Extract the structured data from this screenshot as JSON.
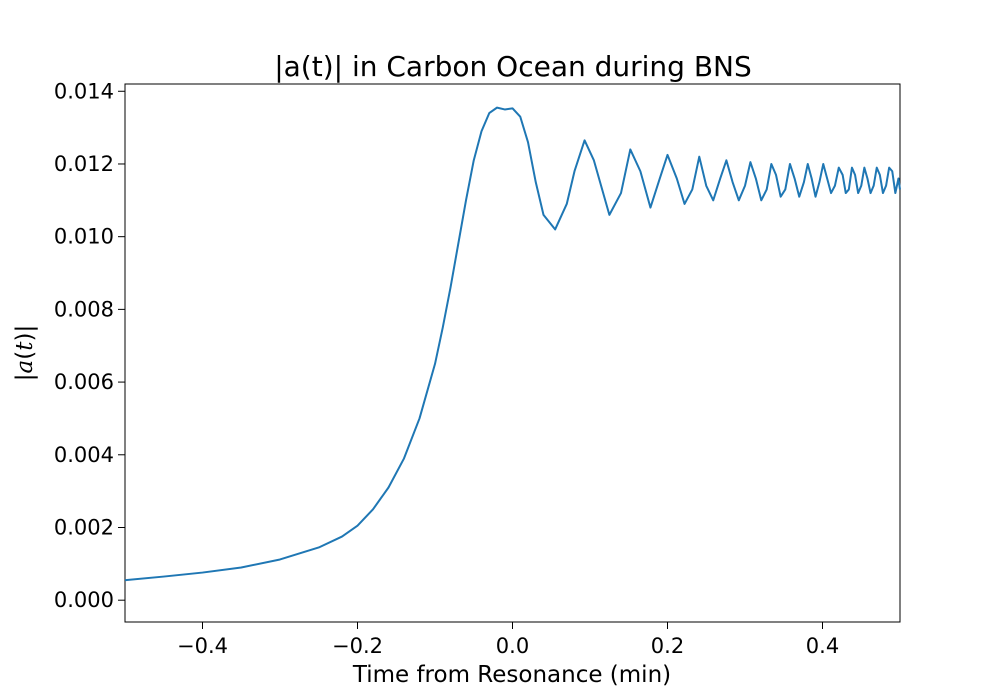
{
  "chart_data": {
    "type": "line",
    "title": "|a(t)| in Carbon Ocean during BNS",
    "xlabel": "Time from Resonance (min)",
    "ylabel_parts": [
      "|",
      "a",
      "(",
      "t",
      ")|"
    ],
    "xlim": [
      -0.5,
      0.5
    ],
    "ylim": [
      -0.0006,
      0.0142
    ],
    "xticks": [
      -0.4,
      -0.2,
      0.0,
      0.2,
      0.4
    ],
    "xtick_labels": [
      "−0.4",
      "−0.2",
      "0.0",
      "0.2",
      "0.4"
    ],
    "yticks": [
      0.0,
      0.002,
      0.004,
      0.006,
      0.008,
      0.01,
      0.012,
      0.014
    ],
    "ytick_labels": [
      "0.000",
      "0.002",
      "0.004",
      "0.006",
      "0.008",
      "0.010",
      "0.012",
      "0.014"
    ],
    "grid": false,
    "line_color": "#1f77b4",
    "series": [
      {
        "x": [
          -0.5,
          -0.45,
          -0.4,
          -0.35,
          -0.3,
          -0.25,
          -0.22,
          -0.2,
          -0.18,
          -0.16,
          -0.14,
          -0.12,
          -0.1,
          -0.09,
          -0.08,
          -0.07,
          -0.06,
          -0.05,
          -0.04,
          -0.03,
          -0.02,
          -0.01,
          0.0,
          0.01,
          0.02,
          0.03,
          0.04,
          0.055,
          0.07,
          0.08,
          0.093,
          0.105,
          0.125,
          0.14,
          0.152,
          0.165,
          0.178,
          0.19,
          0.2,
          0.212,
          0.222,
          0.232,
          0.241,
          0.25,
          0.259,
          0.268,
          0.276,
          0.284,
          0.292,
          0.3,
          0.307,
          0.314,
          0.321,
          0.328,
          0.334,
          0.34,
          0.346,
          0.352,
          0.358,
          0.364,
          0.37,
          0.376,
          0.381,
          0.386,
          0.391,
          0.396,
          0.401,
          0.406,
          0.411,
          0.416,
          0.421,
          0.426,
          0.43,
          0.434,
          0.438,
          0.442,
          0.446,
          0.45,
          0.454,
          0.458,
          0.462,
          0.466,
          0.47,
          0.474,
          0.478,
          0.482,
          0.486,
          0.49,
          0.494,
          0.498,
          0.5
        ],
        "y": [
          0.00055,
          0.00065,
          0.00076,
          0.0009,
          0.00112,
          0.00145,
          0.00175,
          0.00205,
          0.0025,
          0.0031,
          0.0039,
          0.005,
          0.0065,
          0.0075,
          0.0086,
          0.0098,
          0.011,
          0.0121,
          0.0129,
          0.0134,
          0.01355,
          0.0135,
          0.01353,
          0.0133,
          0.0126,
          0.0115,
          0.0106,
          0.0102,
          0.0109,
          0.0118,
          0.01265,
          0.0121,
          0.0106,
          0.0112,
          0.0124,
          0.0118,
          0.0108,
          0.0116,
          0.01225,
          0.0116,
          0.0109,
          0.0113,
          0.0122,
          0.0114,
          0.011,
          0.0116,
          0.0121,
          0.0115,
          0.011,
          0.0114,
          0.01205,
          0.0116,
          0.011,
          0.0113,
          0.012,
          0.0117,
          0.0111,
          0.0113,
          0.012,
          0.0116,
          0.0111,
          0.0115,
          0.012,
          0.0116,
          0.0111,
          0.0115,
          0.012,
          0.0116,
          0.0112,
          0.0114,
          0.0119,
          0.0117,
          0.0112,
          0.0113,
          0.0119,
          0.0117,
          0.0112,
          0.0114,
          0.0119,
          0.0116,
          0.0112,
          0.0114,
          0.0119,
          0.0117,
          0.0112,
          0.0114,
          0.0119,
          0.0118,
          0.0112,
          0.0116,
          0.0113
        ]
      }
    ]
  }
}
